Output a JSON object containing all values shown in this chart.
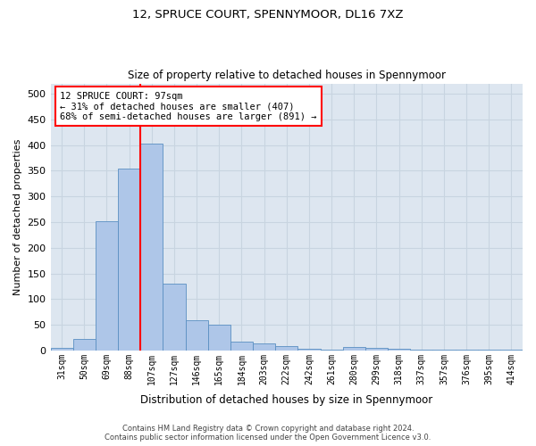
{
  "title": "12, SPRUCE COURT, SPENNYMOOR, DL16 7XZ",
  "subtitle": "Size of property relative to detached houses in Spennymoor",
  "xlabel": "Distribution of detached houses by size in Spennymoor",
  "ylabel": "Number of detached properties",
  "footer_line1": "Contains HM Land Registry data © Crown copyright and database right 2024.",
  "footer_line2": "Contains public sector information licensed under the Open Government Licence v3.0.",
  "bar_labels": [
    "31sqm",
    "50sqm",
    "69sqm",
    "88sqm",
    "107sqm",
    "127sqm",
    "146sqm",
    "165sqm",
    "184sqm",
    "203sqm",
    "222sqm",
    "242sqm",
    "261sqm",
    "280sqm",
    "299sqm",
    "318sqm",
    "337sqm",
    "357sqm",
    "376sqm",
    "395sqm",
    "414sqm"
  ],
  "bar_values": [
    5,
    22,
    252,
    354,
    403,
    130,
    58,
    50,
    17,
    13,
    8,
    3,
    1,
    7,
    5,
    3,
    1,
    2,
    1,
    1,
    2
  ],
  "bar_color": "#aec6e8",
  "bar_edge_color": "#5a8fc2",
  "grid_color": "#c8d4e0",
  "bg_color": "#dde6f0",
  "vline_x": 3.5,
  "vline_color": "red",
  "annotation_line1": "12 SPRUCE COURT: 97sqm",
  "annotation_line2": "← 31% of detached houses are smaller (407)",
  "annotation_line3": "68% of semi-detached houses are larger (891) →",
  "annotation_box_color": "red",
  "ylim": [
    0,
    520
  ],
  "yticks": [
    0,
    50,
    100,
    150,
    200,
    250,
    300,
    350,
    400,
    450,
    500
  ]
}
